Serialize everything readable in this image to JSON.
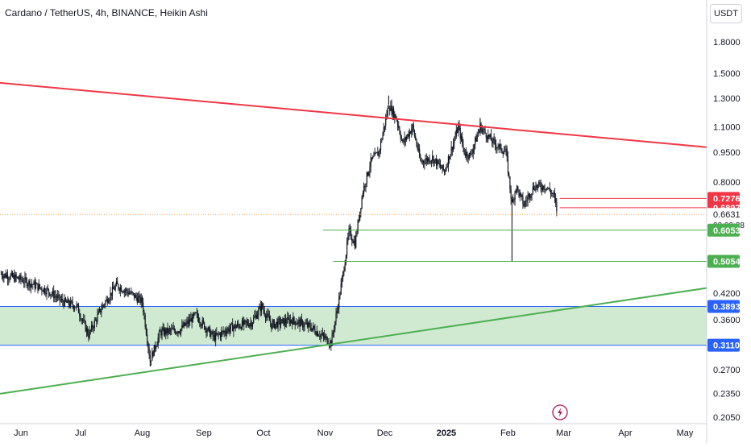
{
  "header": {
    "title": "Cardano / TetherUS, 4h, BINANCE, Heikin Ashi",
    "currency_button": "USDT"
  },
  "colors": {
    "resistance": "#f23645",
    "support": "#4caf50",
    "zone_border": "#2962ff",
    "zone_fill": "#c8e6c9",
    "candles": "#131722",
    "current_price": "#f7a350",
    "axis_text": "#131722",
    "axis_line": "#d1d4dc"
  },
  "icons": {
    "logo": "lightning-icon"
  },
  "chart_data": {
    "type": "line",
    "series_style": "Heikin Ashi candles",
    "x_ticks": [
      "Jun",
      "Jul",
      "Aug",
      "Sep",
      "Oct",
      "Nov",
      "Dec",
      "2025",
      "Feb",
      "Mar",
      "Apr",
      "May"
    ],
    "y_scale": "log",
    "y_ticks": [
      "1.8000",
      "1.5000",
      "1.3000",
      "1.1000",
      "0.9500",
      "0.8000",
      "0.4200",
      "0.3600",
      "0.2700",
      "0.2350",
      "0.2050"
    ],
    "ylim": [
      0.2,
      2.0
    ],
    "price_labels": [
      {
        "value": "0.7276",
        "style": "red"
      },
      {
        "value": "0.6897",
        "style": "red"
      },
      {
        "value": "0.6631",
        "style": "plain",
        "countdown": "02:09:28"
      },
      {
        "value": "0.6053",
        "style": "green"
      },
      {
        "value": "0.5054",
        "style": "green"
      },
      {
        "value": "0.3893",
        "style": "blue"
      },
      {
        "value": "0.3110",
        "style": "blue"
      }
    ],
    "price_path": [
      [
        "May 22",
        0.47
      ],
      [
        "Jun 1",
        0.455
      ],
      [
        "Jun 8",
        0.44
      ],
      [
        "Jun 15",
        0.425
      ],
      [
        "Jun 22",
        0.4
      ],
      [
        "Jun 29",
        0.39
      ],
      [
        "Jul 5",
        0.33
      ],
      [
        "Jul 12",
        0.39
      ],
      [
        "Jul 19",
        0.44
      ],
      [
        "Jul 26",
        0.42
      ],
      [
        "Aug 1",
        0.4
      ],
      [
        "Aug 5",
        0.285
      ],
      [
        "Aug 10",
        0.335
      ],
      [
        "Aug 20",
        0.34
      ],
      [
        "Aug 28",
        0.37
      ],
      [
        "Sep 6",
        0.325
      ],
      [
        "Sep 15",
        0.345
      ],
      [
        "Sep 25",
        0.355
      ],
      [
        "Sep 30",
        0.39
      ],
      [
        "Oct 5",
        0.35
      ],
      [
        "Oct 15",
        0.36
      ],
      [
        "Oct 25",
        0.345
      ],
      [
        "Nov 4",
        0.315
      ],
      [
        "Nov 7",
        0.38
      ],
      [
        "Nov 10",
        0.47
      ],
      [
        "Nov 13",
        0.6
      ],
      [
        "Nov 16",
        0.56
      ],
      [
        "Nov 20",
        0.76
      ],
      [
        "Nov 24",
        0.9
      ],
      [
        "Nov 28",
        0.95
      ],
      [
        "Dec 3",
        1.25
      ],
      [
        "Dec 7",
        1.15
      ],
      [
        "Dec 10",
        1.0
      ],
      [
        "Dec 15",
        1.1
      ],
      [
        "Dec 19",
        0.9
      ],
      [
        "Dec 25",
        0.92
      ],
      [
        "Dec 31",
        0.85
      ],
      [
        "Jan 7",
        1.1
      ],
      [
        "Jan 10",
        0.95
      ],
      [
        "Jan 13",
        0.93
      ],
      [
        "Jan 18",
        1.1
      ],
      [
        "Jan 25",
        1.0
      ],
      [
        "Jan 31",
        0.95
      ],
      [
        "Feb 3",
        0.7
      ],
      [
        "Feb 5",
        0.78
      ],
      [
        "Feb 9",
        0.7
      ],
      [
        "Feb 14",
        0.78
      ],
      [
        "Feb 20",
        0.78
      ],
      [
        "Feb 24",
        0.74
      ],
      [
        "Feb 26",
        0.663
      ]
    ],
    "wick_extremes": [
      [
        "Aug 5",
        0.275
      ],
      [
        "Feb 3",
        0.505
      ],
      [
        "Dec 3",
        1.32
      ],
      [
        "Jan 18",
        1.16
      ]
    ],
    "lines": [
      {
        "kind": "resistance-trendline",
        "from": [
          "May 22",
          1.42
        ],
        "to": [
          "May 1",
          0.99
        ]
      },
      {
        "kind": "support-trendline",
        "from": [
          "May 22",
          0.235
        ],
        "to": [
          "May 1",
          0.425
        ]
      },
      {
        "kind": "horizontal",
        "value": 0.7276,
        "from": "Feb 27"
      },
      {
        "kind": "horizontal",
        "value": 0.6897,
        "from": "Feb 27"
      },
      {
        "kind": "horizontal",
        "value": 0.6053,
        "from": "Oct 31"
      },
      {
        "kind": "horizontal",
        "value": 0.5054,
        "from": "Nov 5"
      },
      {
        "kind": "zone",
        "top": 0.3893,
        "bottom": 0.311
      }
    ]
  }
}
